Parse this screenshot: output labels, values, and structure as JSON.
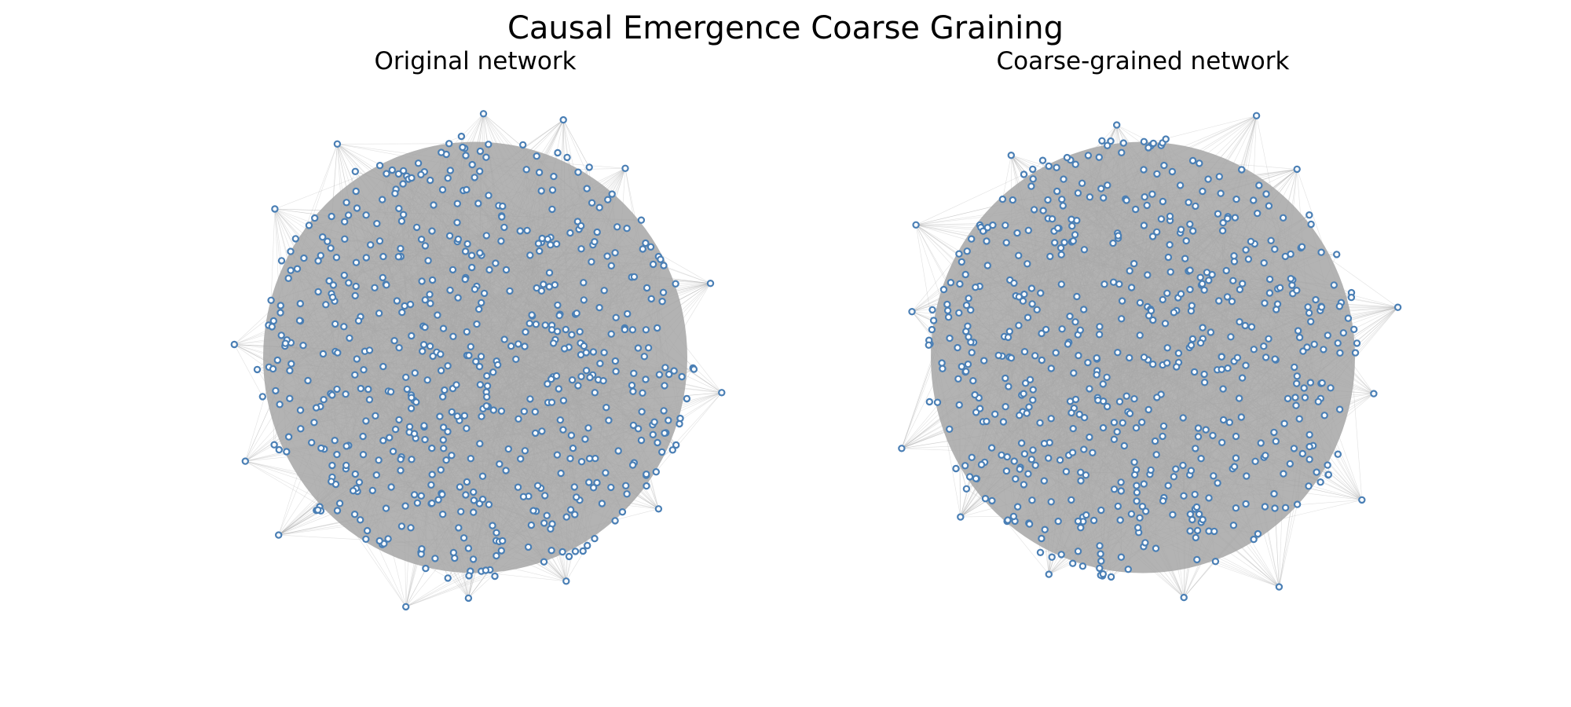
{
  "figure": {
    "title": "Causal Emergence Coarse Graining"
  },
  "panels": [
    {
      "id": "original",
      "title": "Original network",
      "node_count": 600,
      "outlier_count": 14,
      "seed": 7
    },
    {
      "id": "coarse",
      "title": "Coarse-grained network",
      "node_count": 600,
      "outlier_count": 14,
      "seed": 11
    }
  ],
  "colors": {
    "node_stroke": "#4a7fb5",
    "node_fill": "#ffffff",
    "edge": "#a8a8a8",
    "core": "#b3b3b3",
    "background": "#ffffff"
  }
}
